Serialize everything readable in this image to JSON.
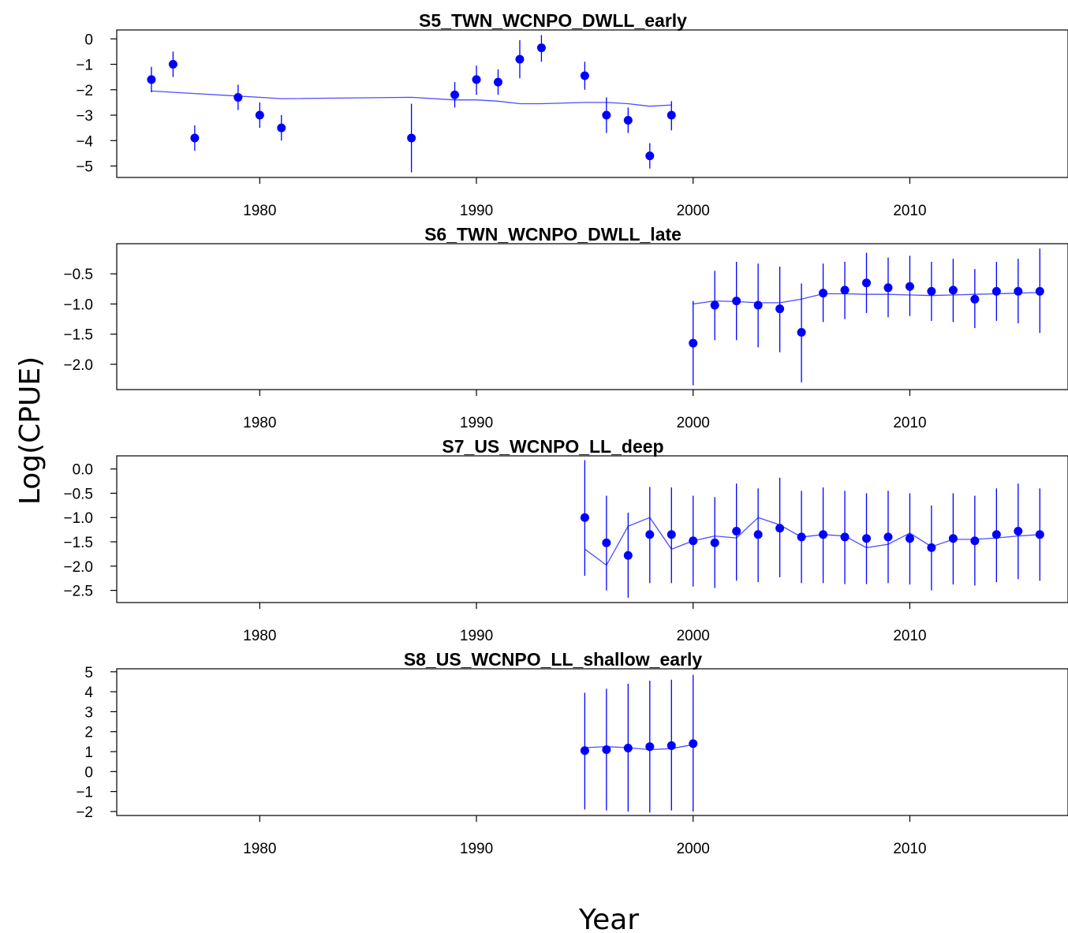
{
  "figure": {
    "ylabel": "Log(CPUE)",
    "xlabel": "Year",
    "point_color": "#0000ff",
    "line_color": "#4c4cff"
  },
  "chart_data": [
    {
      "type": "scatter",
      "title": "S5_TWN_WCNPO_DWLL_early",
      "xlim": [
        1973.4,
        2017.3
      ],
      "ylim": [
        -5.45,
        0.35
      ],
      "xticks": [
        1980,
        1990,
        2000,
        2010
      ],
      "yticks": [
        0,
        -1,
        -2,
        -3,
        -4,
        -5
      ],
      "ytick_labels": [
        "0",
        "−1",
        "−2",
        "−3",
        "−4",
        "−5"
      ],
      "series": [
        {
          "x": [
            1975,
            1976,
            1977,
            1979,
            1980,
            1981,
            1987,
            1989,
            1990,
            1991,
            1992,
            1993,
            1995,
            1996,
            1997,
            1998,
            1999
          ],
          "y": [
            -1.6,
            -1.0,
            -3.9,
            -2.3,
            -3.0,
            -3.5,
            -3.9,
            -2.2,
            -1.6,
            -1.7,
            -0.8,
            -0.35,
            -1.45,
            -3.0,
            -3.2,
            -4.6,
            -3.0
          ],
          "lower": [
            -2.1,
            -1.5,
            -4.4,
            -2.8,
            -3.5,
            -4.0,
            -5.25,
            -2.7,
            -2.2,
            -2.2,
            -1.55,
            -0.9,
            -2.0,
            -3.7,
            -3.7,
            -5.1,
            -3.6
          ],
          "upper": [
            -1.1,
            -0.5,
            -3.4,
            -1.8,
            -2.5,
            -3.0,
            -2.55,
            -1.7,
            -1.05,
            -1.2,
            -0.05,
            0.15,
            -0.9,
            -2.3,
            -2.7,
            -4.1,
            -2.45
          ]
        },
        {
          "type": "line",
          "x": [
            1975,
            1976,
            1977,
            1979,
            1980,
            1981,
            1987,
            1989,
            1990,
            1991,
            1992,
            1993,
            1995,
            1996,
            1997,
            1998,
            1999
          ],
          "y": [
            -2.05,
            -2.1,
            -2.15,
            -2.25,
            -2.3,
            -2.35,
            -2.3,
            -2.4,
            -2.4,
            -2.45,
            -2.55,
            -2.55,
            -2.5,
            -2.5,
            -2.55,
            -2.65,
            -2.6
          ]
        }
      ]
    },
    {
      "type": "scatter",
      "title": "S6_TWN_WCNPO_DWLL_late",
      "xlim": [
        1973.4,
        2017.3
      ],
      "ylim": [
        -2.42,
        0.0
      ],
      "xticks": [
        1980,
        1990,
        2000,
        2010
      ],
      "yticks": [
        -0.5,
        -1.0,
        -1.5,
        -2.0
      ],
      "ytick_labels": [
        "−0.5",
        "−1.0",
        "−1.5",
        "−2.0"
      ],
      "series": [
        {
          "x": [
            2000,
            2001,
            2002,
            2003,
            2004,
            2005,
            2006,
            2007,
            2008,
            2009,
            2010,
            2011,
            2012,
            2013,
            2014,
            2015,
            2016
          ],
          "y": [
            -1.65,
            -1.02,
            -0.95,
            -1.02,
            -1.08,
            -1.47,
            -0.82,
            -0.77,
            -0.65,
            -0.73,
            -0.71,
            -0.79,
            -0.77,
            -0.92,
            -0.79,
            -0.79,
            -0.79
          ],
          "lower": [
            -2.35,
            -1.6,
            -1.6,
            -1.72,
            -1.8,
            -2.3,
            -1.3,
            -1.25,
            -1.15,
            -1.22,
            -1.2,
            -1.28,
            -1.3,
            -1.4,
            -1.28,
            -1.32,
            -1.48
          ],
          "upper": [
            -0.95,
            -0.45,
            -0.3,
            -0.33,
            -0.38,
            -0.66,
            -0.33,
            -0.3,
            -0.15,
            -0.23,
            -0.2,
            -0.3,
            -0.25,
            -0.42,
            -0.3,
            -0.25,
            -0.08
          ]
        },
        {
          "type": "line",
          "x": [
            2000,
            2001,
            2002,
            2003,
            2004,
            2005,
            2006,
            2007,
            2008,
            2009,
            2010,
            2011,
            2012,
            2013,
            2014,
            2015,
            2016
          ],
          "y": [
            -1.0,
            -0.95,
            -0.96,
            -0.98,
            -0.98,
            -0.92,
            -0.83,
            -0.83,
            -0.84,
            -0.84,
            -0.85,
            -0.86,
            -0.85,
            -0.84,
            -0.83,
            -0.82,
            -0.81
          ]
        }
      ]
    },
    {
      "type": "scatter",
      "title": "S7_US_WCNPO_LL_deep",
      "xlim": [
        1973.4,
        2017.3
      ],
      "ylim": [
        -2.75,
        0.27
      ],
      "xticks": [
        1980,
        1990,
        2000,
        2010
      ],
      "yticks": [
        0.0,
        -0.5,
        -1.0,
        -1.5,
        -2.0,
        -2.5
      ],
      "ytick_labels": [
        "0.0",
        "−0.5",
        "−1.0",
        "−1.5",
        "−2.0",
        "−2.5"
      ],
      "series": [
        {
          "x": [
            1995,
            1996,
            1997,
            1998,
            1999,
            2000,
            2001,
            2002,
            2003,
            2004,
            2005,
            2006,
            2007,
            2008,
            2009,
            2010,
            2011,
            2012,
            2013,
            2014,
            2015,
            2016
          ],
          "y": [
            -1.0,
            -1.52,
            -1.78,
            -1.35,
            -1.35,
            -1.48,
            -1.52,
            -1.28,
            -1.35,
            -1.22,
            -1.4,
            -1.35,
            -1.4,
            -1.43,
            -1.4,
            -1.43,
            -1.62,
            -1.43,
            -1.48,
            -1.35,
            -1.28,
            -1.35
          ],
          "lower": [
            -2.2,
            -2.5,
            -2.65,
            -2.35,
            -2.35,
            -2.42,
            -2.45,
            -2.3,
            -2.33,
            -2.23,
            -2.35,
            -2.35,
            -2.37,
            -2.37,
            -2.35,
            -2.38,
            -2.5,
            -2.38,
            -2.4,
            -2.33,
            -2.27,
            -2.3
          ],
          "upper": [
            0.18,
            -0.55,
            -0.9,
            -0.37,
            -0.38,
            -0.55,
            -0.58,
            -0.3,
            -0.4,
            -0.18,
            -0.45,
            -0.38,
            -0.45,
            -0.5,
            -0.45,
            -0.5,
            -0.75,
            -0.5,
            -0.55,
            -0.4,
            -0.3,
            -0.4
          ]
        },
        {
          "type": "line",
          "x": [
            1995,
            1996,
            1997,
            1998,
            1999,
            2000,
            2001,
            2002,
            2003,
            2004,
            2005,
            2006,
            2007,
            2008,
            2009,
            2010,
            2011,
            2012,
            2013,
            2014,
            2015,
            2016
          ],
          "y": [
            -1.65,
            -1.98,
            -1.18,
            -1.0,
            -1.65,
            -1.48,
            -1.38,
            -1.42,
            -1.0,
            -1.15,
            -1.4,
            -1.35,
            -1.38,
            -1.62,
            -1.55,
            -1.32,
            -1.6,
            -1.45,
            -1.45,
            -1.42,
            -1.38,
            -1.35
          ]
        }
      ]
    },
    {
      "type": "scatter",
      "title": "S8_US_WCNPO_LL_shallow_early",
      "xlim": [
        1973.4,
        2017.3
      ],
      "ylim": [
        -2.2,
        5.15
      ],
      "xticks": [
        1980,
        1990,
        2000,
        2010
      ],
      "yticks": [
        5,
        4,
        3,
        2,
        1,
        0,
        -1,
        -2
      ],
      "ytick_labels": [
        "5",
        "4",
        "3",
        "2",
        "1",
        "0",
        "−1",
        "−2"
      ],
      "series": [
        {
          "x": [
            1995,
            1996,
            1997,
            1998,
            1999,
            2000
          ],
          "y": [
            1.05,
            1.1,
            1.18,
            1.25,
            1.3,
            1.4
          ],
          "lower": [
            -1.9,
            -1.95,
            -2.0,
            -2.05,
            -1.95,
            -2.0
          ],
          "upper": [
            3.95,
            4.15,
            4.4,
            4.55,
            4.6,
            4.85
          ]
        },
        {
          "type": "line",
          "x": [
            1995,
            1996,
            1997,
            1998,
            1999,
            2000
          ],
          "y": [
            1.2,
            1.25,
            1.2,
            1.1,
            1.15,
            1.35
          ]
        }
      ]
    }
  ]
}
